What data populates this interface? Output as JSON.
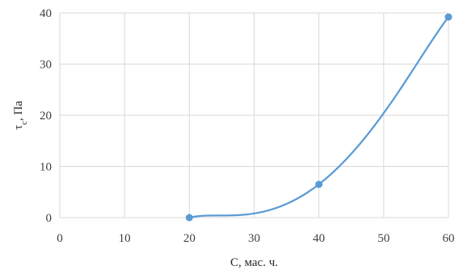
{
  "chart_data": {
    "type": "line",
    "smooth": true,
    "title": "",
    "xlabel": "C, мас. ч.",
    "ylabel": "τ",
    "ylabel_subscript": "c",
    "ylabel_suffix": ", Па",
    "xlim": [
      0,
      60
    ],
    "ylim": [
      0,
      40
    ],
    "xticks": [
      0,
      10,
      20,
      30,
      40,
      50,
      60
    ],
    "yticks": [
      0,
      10,
      20,
      30,
      40
    ],
    "grid": true,
    "legend": "none",
    "series": [
      {
        "color": "#5b9bd5",
        "x": [
          20,
          40,
          60
        ],
        "y": [
          0,
          6.5,
          39.2
        ]
      }
    ]
  }
}
